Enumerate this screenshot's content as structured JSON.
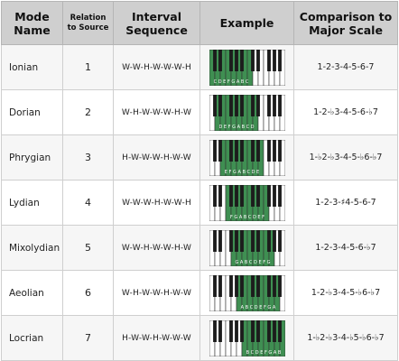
{
  "headers": {
    "mode_name": "Mode Name",
    "relation": "Relation to Source",
    "interval": "Interval Sequence",
    "example": "Example",
    "comparison": "Comparison to Major Scale"
  },
  "rows": [
    {
      "mode": "Ionian",
      "relation": "1",
      "interval": "W-W-H-W-W-W-H",
      "comparison": "1-2-3-4-5-6-7",
      "keyboard_label": "C D E F G A B C",
      "highlight_start": 0
    },
    {
      "mode": "Dorian",
      "relation": "2",
      "interval": "W-H-W-W-W-H-W",
      "comparison": "1-2-♭3-4-5-6-♭7",
      "keyboard_label": "D E F G A B C D",
      "highlight_start": 1
    },
    {
      "mode": "Phrygian",
      "relation": "3",
      "interval": "H-W-W-W-H-W-W",
      "comparison": "1-♭2-♭3-4-5-♭6-♭7",
      "keyboard_label": "E F G A B C D E",
      "highlight_start": 2
    },
    {
      "mode": "Lydian",
      "relation": "4",
      "interval": "W-W-W-H-W-W-H",
      "comparison": "1-2-3-♯4-5-6-7",
      "keyboard_label": "F G A B C D E F",
      "highlight_start": 3
    },
    {
      "mode": "Mixolydian",
      "relation": "5",
      "interval": "W-W-H-W-W-H-W",
      "comparison": "1-2-3-4-5-6-♭7",
      "keyboard_label": "G A B C D E F G",
      "highlight_start": 4
    },
    {
      "mode": "Aeolian",
      "relation": "6",
      "interval": "W-H-W-W-H-W-W",
      "comparison": "1-2-♭3-4-5-♭6-♭7",
      "keyboard_label": "A B C D E F G A",
      "highlight_start": 5
    },
    {
      "mode": "Locrian",
      "relation": "7",
      "interval": "H-W-W-H-W-W-W",
      "comparison": "1-♭2-♭3-4-♭5-♭6-♭7",
      "keyboard_label": "B C D E F G A B",
      "highlight_start": 6
    }
  ],
  "colors": {
    "header_bg": "#cfcfcf",
    "highlight": "#3f8f52",
    "white_key": "#ffffff",
    "black_key": "#1c1c1c",
    "key_border": "#333333"
  }
}
